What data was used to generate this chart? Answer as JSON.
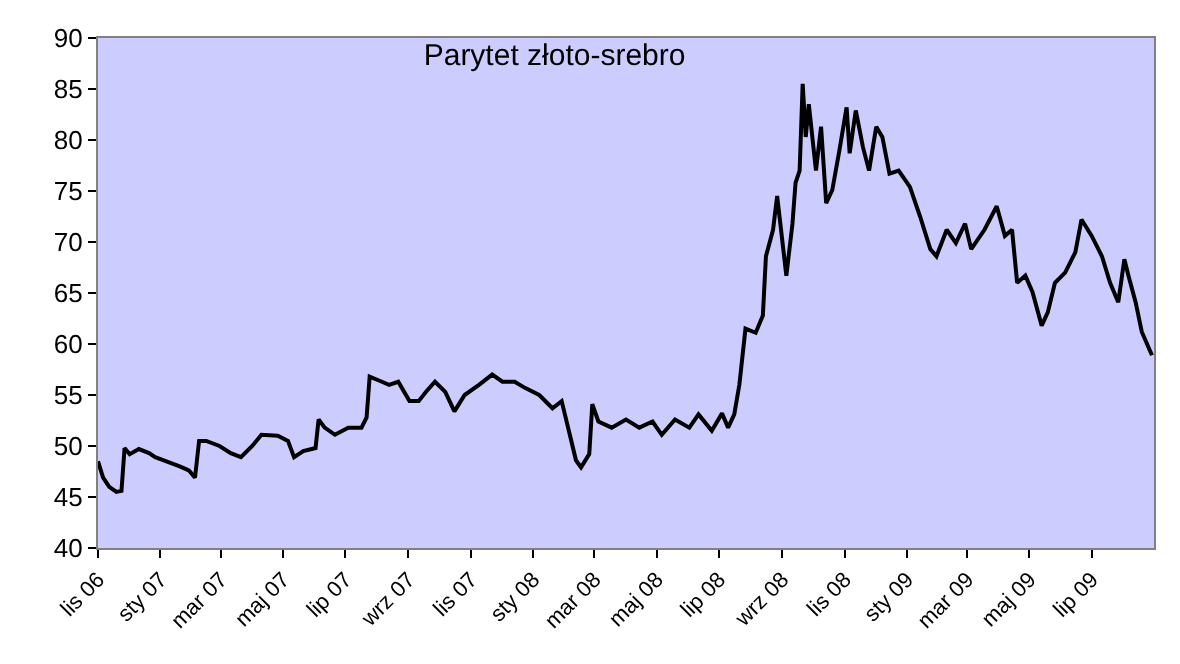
{
  "chart_data": {
    "type": "line",
    "title": "Parytet złoto-srebro",
    "x": [
      "2006-11-01",
      "2006-11-06",
      "2006-11-12",
      "2006-11-19",
      "2006-11-24",
      "2006-11-27",
      "2006-12-02",
      "2006-12-11",
      "2006-12-21",
      "2006-12-27",
      "2007-01-07",
      "2007-01-20",
      "2007-01-29",
      "2007-02-04",
      "2007-02-08",
      "2007-02-15",
      "2007-02-28",
      "2007-03-11",
      "2007-03-21",
      "2007-04-01",
      "2007-04-10",
      "2007-04-26",
      "2007-05-06",
      "2007-05-12",
      "2007-05-21",
      "2007-06-02",
      "2007-06-05",
      "2007-06-11",
      "2007-06-21",
      "2007-07-04",
      "2007-07-17",
      "2007-07-22",
      "2007-07-25",
      "2007-08-06",
      "2007-08-13",
      "2007-08-22",
      "2007-09-02",
      "2007-09-11",
      "2007-09-18",
      "2007-09-27",
      "2007-10-07",
      "2007-10-16",
      "2007-10-26",
      "2007-11-09",
      "2007-11-22",
      "2007-12-02",
      "2007-12-14",
      "2007-12-24",
      "2008-01-07",
      "2008-01-20",
      "2008-01-29",
      "2008-02-06",
      "2008-02-12",
      "2008-02-17",
      "2008-02-25",
      "2008-02-28",
      "2008-03-05",
      "2008-03-18",
      "2008-04-01",
      "2008-04-14",
      "2008-04-27",
      "2008-05-06",
      "2008-05-19",
      "2008-06-02",
      "2008-06-11",
      "2008-06-24",
      "2008-07-04",
      "2008-07-10",
      "2008-07-16",
      "2008-07-21",
      "2008-07-27",
      "2008-08-06",
      "2008-08-13",
      "2008-08-16",
      "2008-08-23",
      "2008-08-27",
      "2008-09-05",
      "2008-09-11",
      "2008-09-14",
      "2008-09-18",
      "2008-09-21",
      "2008-09-24",
      "2008-09-27",
      "2008-10-04",
      "2008-10-09",
      "2008-10-14",
      "2008-10-20",
      "2008-10-27",
      "2008-11-03",
      "2008-11-06",
      "2008-11-12",
      "2008-11-19",
      "2008-11-25",
      "2008-12-02",
      "2008-12-08",
      "2008-12-15",
      "2008-12-24",
      "2009-01-04",
      "2009-01-14",
      "2009-01-24",
      "2009-01-30",
      "2009-02-09",
      "2009-02-18",
      "2009-02-27",
      "2009-03-05",
      "2009-03-18",
      "2009-03-30",
      "2009-04-07",
      "2009-04-14",
      "2009-04-19",
      "2009-04-27",
      "2009-05-04",
      "2009-05-13",
      "2009-05-19",
      "2009-05-26",
      "2009-06-05",
      "2009-06-15",
      "2009-06-21",
      "2009-07-01",
      "2009-07-11",
      "2009-07-19",
      "2009-07-27",
      "2009-08-02",
      "2009-08-06",
      "2009-08-13",
      "2009-08-19",
      "2009-08-29"
    ],
    "series": [
      {
        "color": "#000000",
        "values": [
          48.5,
          46.9,
          46.0,
          45.5,
          45.6,
          49.8,
          49.2,
          49.7,
          49.3,
          48.9,
          48.5,
          48.0,
          47.6,
          46.9,
          50.5,
          50.5,
          50.0,
          49.3,
          48.9,
          50.0,
          51.1,
          51.0,
          50.5,
          48.9,
          49.5,
          49.8,
          52.6,
          51.8,
          51.1,
          51.8,
          51.8,
          52.8,
          56.8,
          56.3,
          56.0,
          56.3,
          54.4,
          54.4,
          55.3,
          56.3,
          55.3,
          53.4,
          55.0,
          56.0,
          57.0,
          56.3,
          56.3,
          55.7,
          55.0,
          53.7,
          54.4,
          51.1,
          48.6,
          47.9,
          49.2,
          54.1,
          52.4,
          51.8,
          52.6,
          51.8,
          52.4,
          51.1,
          52.6,
          51.8,
          53.1,
          51.5,
          53.2,
          51.8,
          53.1,
          56.0,
          61.5,
          61.1,
          62.8,
          68.6,
          71.2,
          74.5,
          66.7,
          71.8,
          75.8,
          77.0,
          85.5,
          80.3,
          83.5,
          77.0,
          81.3,
          73.8,
          75.1,
          79.0,
          83.2,
          78.7,
          82.9,
          79.3,
          77.0,
          81.3,
          80.3,
          76.7,
          77.0,
          75.4,
          72.5,
          69.3,
          68.6,
          71.2,
          69.9,
          71.8,
          69.3,
          71.2,
          73.5,
          70.6,
          71.2,
          66.0,
          66.7,
          65.1,
          61.8,
          63.1,
          66.0,
          67.0,
          69.0,
          72.2,
          70.6,
          68.6,
          66.0,
          64.1,
          68.3,
          66.7,
          64.1,
          61.2,
          58.9
        ]
      }
    ],
    "xlim": [
      "2006-11-01",
      "2009-08-31"
    ],
    "xticks": [
      {
        "value": "2006-11-01",
        "label": "lis 06"
      },
      {
        "value": "2007-01-01",
        "label": "sty 07"
      },
      {
        "value": "2007-03-01",
        "label": "mar 07"
      },
      {
        "value": "2007-05-01",
        "label": "maj 07"
      },
      {
        "value": "2007-07-01",
        "label": "lip 07"
      },
      {
        "value": "2007-09-01",
        "label": "wrz 07"
      },
      {
        "value": "2007-11-01",
        "label": "lis 07"
      },
      {
        "value": "2008-01-01",
        "label": "sty 08"
      },
      {
        "value": "2008-03-01",
        "label": "mar 08"
      },
      {
        "value": "2008-05-01",
        "label": "maj 08"
      },
      {
        "value": "2008-07-01",
        "label": "lip 08"
      },
      {
        "value": "2008-09-01",
        "label": "wrz 08"
      },
      {
        "value": "2008-11-01",
        "label": "lis 08"
      },
      {
        "value": "2009-01-01",
        "label": "sty 09"
      },
      {
        "value": "2009-03-01",
        "label": "mar 09"
      },
      {
        "value": "2009-05-01",
        "label": "maj 09"
      },
      {
        "value": "2009-07-01",
        "label": "lip 09"
      }
    ],
    "ylim": [
      40,
      90
    ],
    "yticks": [
      40,
      45,
      50,
      55,
      60,
      65,
      70,
      75,
      80,
      85,
      90
    ],
    "grid": false,
    "legend": false,
    "marker": "none",
    "line_style": "solid"
  }
}
